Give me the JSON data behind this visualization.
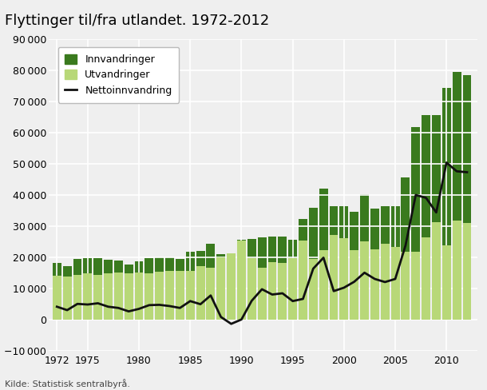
{
  "title": "Flyttinger til/fra utlandet. 1972-2012",
  "source": "Kilde: Statistisk sentralbyrå.",
  "years": [
    1972,
    1973,
    1974,
    1975,
    1976,
    1977,
    1978,
    1979,
    1980,
    1981,
    1982,
    1983,
    1984,
    1985,
    1986,
    1987,
    1988,
    1989,
    1990,
    1991,
    1992,
    1993,
    1994,
    1995,
    1996,
    1997,
    1998,
    1999,
    2000,
    2001,
    2002,
    2003,
    2004,
    2005,
    2006,
    2007,
    2008,
    2009,
    2010,
    2011,
    2012
  ],
  "innvandringer": [
    18300,
    17100,
    19500,
    19700,
    19700,
    19200,
    18900,
    17700,
    18700,
    19700,
    20100,
    20100,
    19500,
    21700,
    22100,
    24500,
    21000,
    19900,
    25600,
    25900,
    26400,
    26600,
    26800,
    25700,
    32200,
    36000,
    42100,
    36400,
    36400,
    34600,
    40200,
    35700,
    36500,
    36500,
    45700,
    61700,
    65600,
    65600,
    74300,
    79500,
    78300
  ],
  "utvandringer": [
    14100,
    14000,
    14400,
    14800,
    14400,
    15000,
    15100,
    15000,
    15200,
    15000,
    15300,
    15700,
    15700,
    15700,
    17100,
    16700,
    20100,
    21200,
    25500,
    19800,
    16600,
    18500,
    18300,
    19700,
    25500,
    19600,
    22200,
    27200,
    26100,
    22400,
    25100,
    22600,
    24400,
    23400,
    21900,
    21700,
    26500,
    31200,
    23900,
    31900,
    31000
  ],
  "nettoinnvandring": [
    4200,
    3100,
    5100,
    4900,
    5300,
    4200,
    3800,
    2700,
    3500,
    4700,
    4800,
    4400,
    3800,
    6000,
    5000,
    7800,
    900,
    -1300,
    100,
    6100,
    9800,
    8100,
    8500,
    6000,
    6700,
    16400,
    19900,
    9200,
    10300,
    12200,
    15100,
    13100,
    12100,
    13100,
    23800,
    40000,
    39100,
    34400,
    50400,
    47600,
    47300
  ],
  "innvandringer_color": "#3a7a1e",
  "utvandringer_color": "#b8d878",
  "nettoinnvandring_color": "#111111",
  "ylim": [
    -10000,
    90000
  ],
  "yticks": [
    -10000,
    0,
    10000,
    20000,
    30000,
    40000,
    50000,
    60000,
    70000,
    80000,
    90000
  ],
  "xticks": [
    1972,
    1975,
    1980,
    1985,
    1990,
    1995,
    2000,
    2005,
    2010
  ],
  "background_color": "#efefef",
  "grid_color": "#ffffff",
  "legend_labels": [
    "Innvandringer",
    "Utvandringer",
    "Nettoinnvandring"
  ],
  "title_fontsize": 13,
  "tick_fontsize": 9,
  "legend_fontsize": 9
}
